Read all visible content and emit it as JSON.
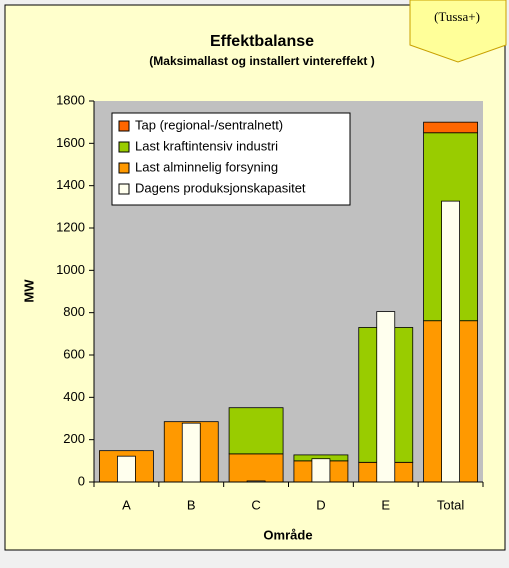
{
  "chart_data": {
    "type": "bar",
    "title": "Effektbalanse",
    "subtitle": "(Maksimallast og installert vintereffekt )",
    "annotation": "(Tussa+)",
    "x_label": "Område",
    "y_label": "MW",
    "categories": [
      "A",
      "B",
      "C",
      "D",
      "E",
      "Total"
    ],
    "series": [
      {
        "name": "Tap (regional-/sentralnett)",
        "color": "#ff6600",
        "values": [
          0,
          0,
          0,
          0,
          0,
          50
        ]
      },
      {
        "name": "Last kraftintensiv industri",
        "color": "#99cc00",
        "values": [
          0,
          0,
          218,
          28,
          637,
          888
        ]
      },
      {
        "name": "Last alminnelig forsyning",
        "color": "#ff9900",
        "values": [
          148,
          285,
          133,
          100,
          93,
          762
        ]
      },
      {
        "name": "Dagens produksjonskapasitet",
        "color": "#ffffee",
        "values": [
          122,
          278,
          5,
          110,
          805,
          1327
        ]
      }
    ],
    "ylim": [
      0,
      1800
    ],
    "yticks": [
      0,
      200,
      400,
      600,
      800,
      1000,
      1200,
      1400,
      1600,
      1800
    ],
    "grid": false
  }
}
